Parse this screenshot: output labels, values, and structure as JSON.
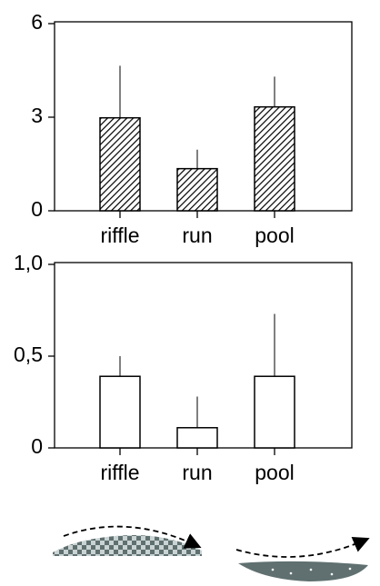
{
  "chart_data": [
    {
      "type": "bar",
      "categories": [
        "riffle",
        "run",
        "pool"
      ],
      "values": [
        2.98,
        1.35,
        3.33
      ],
      "errors": [
        1.67,
        0.61,
        0.97
      ],
      "color": "#ffffff",
      "hatch": true,
      "ylim": [
        0,
        6
      ],
      "yticks": [
        0,
        3,
        6
      ]
    },
    {
      "type": "bar",
      "categories": [
        "riffle",
        "run",
        "pool"
      ],
      "values": [
        0.39,
        0.11,
        0.39
      ],
      "errors": [
        0.11,
        0.17,
        0.34
      ],
      "color": "#ffffff",
      "hatch": false,
      "ylim": [
        0,
        1
      ],
      "yticks": [
        0,
        {
          "value": 0.5,
          "label": "0,5"
        },
        {
          "value": 1,
          "label": "1,0"
        }
      ]
    }
  ]
}
